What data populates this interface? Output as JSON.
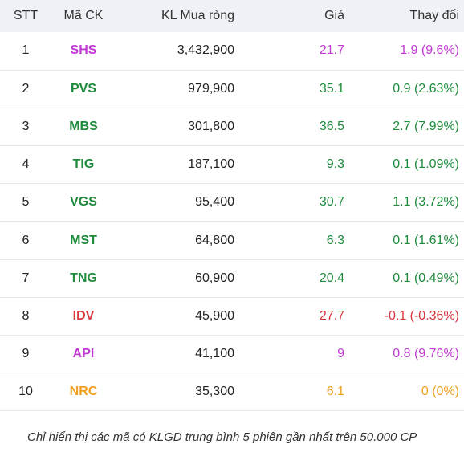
{
  "header": {
    "stt": "STT",
    "ma_ck": "Mã CK",
    "kl": "KL Mua ròng",
    "gia": "Giá",
    "thay_doi": "Thay đổi"
  },
  "rows": [
    {
      "stt": "1",
      "symbol": "SHS",
      "kl": "3,432,900",
      "gia": "21.7",
      "thay_doi": "1.9 (9.6%)",
      "color": "#c03ad2"
    },
    {
      "stt": "2",
      "symbol": "PVS",
      "kl": "979,900",
      "gia": "35.1",
      "thay_doi": "0.9 (2.63%)",
      "color": "#1e8a3c"
    },
    {
      "stt": "3",
      "symbol": "MBS",
      "kl": "301,800",
      "gia": "36.5",
      "thay_doi": "2.7 (7.99%)",
      "color": "#1e8a3c"
    },
    {
      "stt": "4",
      "symbol": "TIG",
      "kl": "187,100",
      "gia": "9.3",
      "thay_doi": "0.1 (1.09%)",
      "color": "#1e8a3c"
    },
    {
      "stt": "5",
      "symbol": "VGS",
      "kl": "95,400",
      "gia": "30.7",
      "thay_doi": "1.1 (3.72%)",
      "color": "#1e8a3c"
    },
    {
      "stt": "6",
      "symbol": "MST",
      "kl": "64,800",
      "gia": "6.3",
      "thay_doi": "0.1 (1.61%)",
      "color": "#1e8a3c"
    },
    {
      "stt": "7",
      "symbol": "TNG",
      "kl": "60,900",
      "gia": "20.4",
      "thay_doi": "0.1 (0.49%)",
      "color": "#1e8a3c"
    },
    {
      "stt": "8",
      "symbol": "IDV",
      "kl": "45,900",
      "gia": "27.7",
      "thay_doi": "-0.1 (-0.36%)",
      "color": "#d9363e"
    },
    {
      "stt": "9",
      "symbol": "API",
      "kl": "41,100",
      "gia": "9",
      "thay_doi": "0.8 (9.76%)",
      "color": "#c03ad2"
    },
    {
      "stt": "10",
      "symbol": "NRC",
      "kl": "35,300",
      "gia": "6.1",
      "thay_doi": "0 (0%)",
      "color": "#f0a020"
    }
  ],
  "note": "Chỉ hiển thị các mã có KLGD trung bình 5 phiên gần nhất trên 50.000 CP"
}
